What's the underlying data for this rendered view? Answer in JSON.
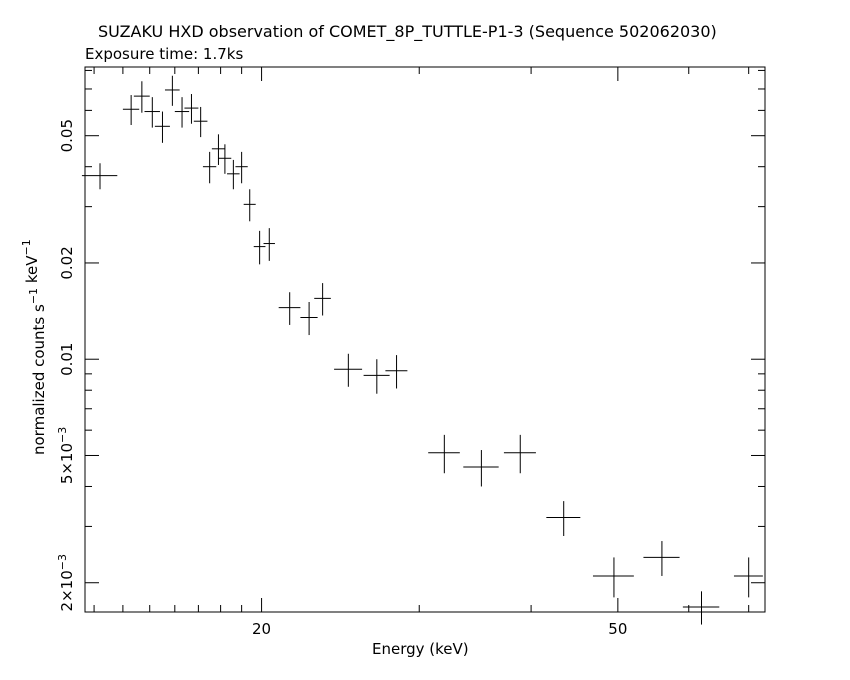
{
  "title": "SUZAKU HXD observation of COMET_8P_TUTTLE-P1-3 (Sequence 502062030)",
  "subtitle": "Exposure time: 1.7ks",
  "chart_data": {
    "type": "scatter",
    "xlabel": "Energy (keV)",
    "ylabel": "normalized counts s⁻¹ keV⁻¹",
    "xscale": "log",
    "yscale": "log",
    "xlim": [
      12.7,
      73
    ],
    "ylim": [
      0.00162,
      0.082
    ],
    "grid": false,
    "x_ticks": [
      "20",
      "50"
    ],
    "y_ticks": [
      "2×10⁻³",
      "5×10⁻³",
      "0.01",
      "0.02",
      "0.05"
    ],
    "series": [
      {
        "style": "error-cross",
        "points": [
          {
            "x": 13.2,
            "xerr": [
              0.6,
              0.6
            ],
            "y": 0.0375,
            "yerr": [
              0.0035,
              0.0035
            ]
          },
          {
            "x": 14.3,
            "xerr": [
              0.3,
              0.3
            ],
            "y": 0.0605,
            "yerr": [
              0.0065,
              0.0065
            ]
          },
          {
            "x": 14.7,
            "xerr": [
              0.3,
              0.3
            ],
            "y": 0.0665,
            "yerr": [
              0.0075,
              0.0075
            ]
          },
          {
            "x": 15.1,
            "xerr": [
              0.3,
              0.3
            ],
            "y": 0.0595,
            "yerr": [
              0.0065,
              0.0065
            ]
          },
          {
            "x": 15.5,
            "xerr": [
              0.3,
              0.3
            ],
            "y": 0.0535,
            "yerr": [
              0.006,
              0.006
            ]
          },
          {
            "x": 15.9,
            "xerr": [
              0.3,
              0.3
            ],
            "y": 0.0695,
            "yerr": [
              0.0075,
              0.0075
            ]
          },
          {
            "x": 16.3,
            "xerr": [
              0.3,
              0.3
            ],
            "y": 0.0595,
            "yerr": [
              0.0065,
              0.0065
            ]
          },
          {
            "x": 16.7,
            "xerr": [
              0.3,
              0.3
            ],
            "y": 0.061,
            "yerr": [
              0.0065,
              0.0065
            ]
          },
          {
            "x": 17.1,
            "xerr": [
              0.3,
              0.3
            ],
            "y": 0.0555,
            "yerr": [
              0.006,
              0.006
            ]
          },
          {
            "x": 17.5,
            "xerr": [
              0.3,
              0.3
            ],
            "y": 0.04,
            "yerr": [
              0.0045,
              0.0045
            ]
          },
          {
            "x": 17.9,
            "xerr": [
              0.3,
              0.3
            ],
            "y": 0.0455,
            "yerr": [
              0.005,
              0.005
            ]
          },
          {
            "x": 18.2,
            "xerr": [
              0.3,
              0.3
            ],
            "y": 0.0425,
            "yerr": [
              0.0045,
              0.0045
            ]
          },
          {
            "x": 18.6,
            "xerr": [
              0.3,
              0.3
            ],
            "y": 0.038,
            "yerr": [
              0.004,
              0.004
            ]
          },
          {
            "x": 19.0,
            "xerr": [
              0.3,
              0.3
            ],
            "y": 0.04,
            "yerr": [
              0.0045,
              0.0045
            ]
          },
          {
            "x": 19.4,
            "xerr": [
              0.3,
              0.3
            ],
            "y": 0.0305,
            "yerr": [
              0.0035,
              0.0035
            ]
          },
          {
            "x": 19.9,
            "xerr": [
              0.3,
              0.3
            ],
            "y": 0.0225,
            "yerr": [
              0.0027,
              0.0027
            ]
          },
          {
            "x": 20.4,
            "xerr": [
              0.3,
              0.3
            ],
            "y": 0.023,
            "yerr": [
              0.0027,
              0.0027
            ]
          },
          {
            "x": 21.5,
            "xerr": [
              0.6,
              0.6
            ],
            "y": 0.0145,
            "yerr": [
              0.0017,
              0.0017
            ]
          },
          {
            "x": 22.6,
            "xerr": [
              0.5,
              0.5
            ],
            "y": 0.0135,
            "yerr": [
              0.0016,
              0.0016
            ]
          },
          {
            "x": 23.4,
            "xerr": [
              0.5,
              0.5
            ],
            "y": 0.0155,
            "yerr": [
              0.0018,
              0.0018
            ]
          },
          {
            "x": 25.0,
            "xerr": [
              0.9,
              0.9
            ],
            "y": 0.0093,
            "yerr": [
              0.0011,
              0.0011
            ]
          },
          {
            "x": 26.9,
            "xerr": [
              0.9,
              0.9
            ],
            "y": 0.0089,
            "yerr": [
              0.0011,
              0.0011
            ]
          },
          {
            "x": 28.3,
            "xerr": [
              0.8,
              0.8
            ],
            "y": 0.0092,
            "yerr": [
              0.0011,
              0.0011
            ]
          },
          {
            "x": 32.0,
            "xerr": [
              1.3,
              1.3
            ],
            "y": 0.0051,
            "yerr": [
              0.0007,
              0.0007
            ]
          },
          {
            "x": 35.2,
            "xerr": [
              1.6,
              1.6
            ],
            "y": 0.0046,
            "yerr": [
              0.0006,
              0.0006
            ]
          },
          {
            "x": 38.9,
            "xerr": [
              1.6,
              1.6
            ],
            "y": 0.0051,
            "yerr": [
              0.0007,
              0.0007
            ]
          },
          {
            "x": 43.5,
            "xerr": [
              1.9,
              1.9
            ],
            "y": 0.0032,
            "yerr": [
              0.0004,
              0.0004
            ]
          },
          {
            "x": 49.5,
            "xerr": [
              2.6,
              2.6
            ],
            "y": 0.0021,
            "yerr": [
              0.0003,
              0.0003
            ]
          },
          {
            "x": 56.0,
            "xerr": [
              2.6,
              2.6
            ],
            "y": 0.0024,
            "yerr": [
              0.0003,
              0.0003
            ]
          },
          {
            "x": 62.0,
            "xerr": [
              2.9,
              2.9
            ],
            "y": 0.00168,
            "yerr": [
              0.0002,
              0.0002
            ]
          },
          {
            "x": 70.0,
            "xerr": [
              2.6,
              2.6
            ],
            "y": 0.0021,
            "yerr": [
              0.0003,
              0.0003
            ]
          }
        ]
      }
    ]
  }
}
